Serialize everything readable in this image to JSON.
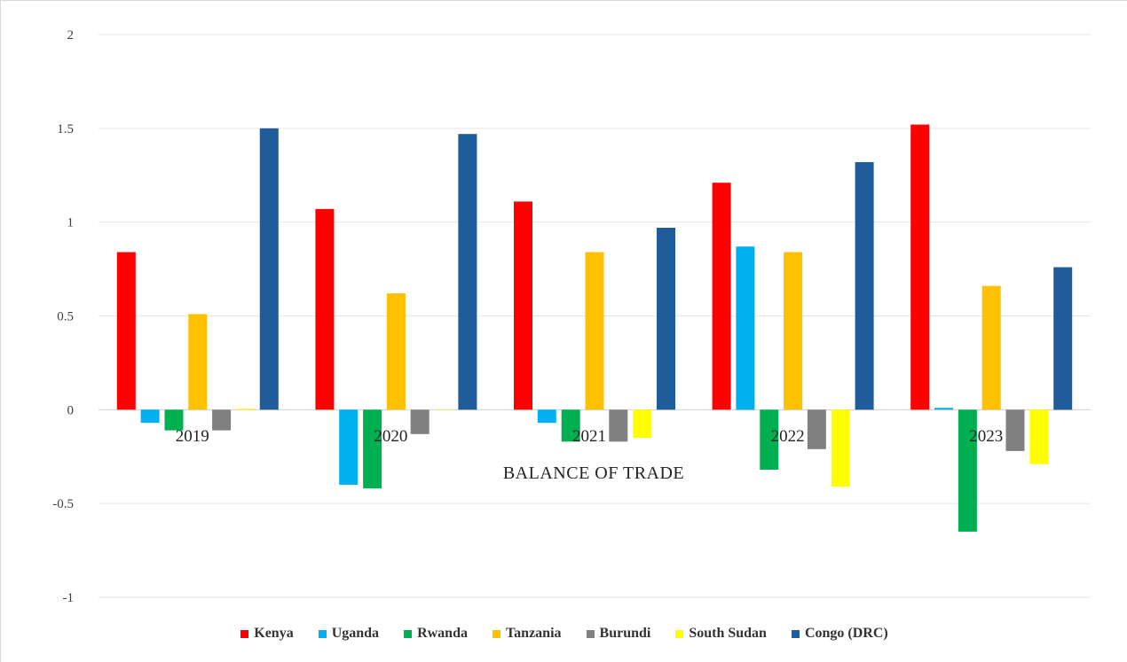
{
  "chart_data": {
    "type": "bar",
    "xlabel": "BALANCE OF TRADE",
    "ylabel": "",
    "ylim": [
      -1,
      2
    ],
    "yticks": [
      "2",
      "1.5",
      "1",
      "0.5",
      "0",
      "-0.5",
      "-1"
    ],
    "grid": true,
    "legend_position": "bottom",
    "categories": [
      "2019",
      "2020",
      "2021",
      "2022",
      "2023"
    ],
    "series": [
      {
        "name": "Kenya",
        "color": "#ff0000",
        "values": [
          0.84,
          1.07,
          1.11,
          1.21,
          1.52
        ]
      },
      {
        "name": "Uganda",
        "color": "#00b0f0",
        "values": [
          -0.07,
          -0.4,
          -0.07,
          0.87,
          0.01
        ]
      },
      {
        "name": "Rwanda",
        "color": "#00b050",
        "values": [
          -0.11,
          -0.42,
          -0.17,
          -0.32,
          -0.65
        ]
      },
      {
        "name": "Tanzania",
        "color": "#ffc000",
        "values": [
          0.51,
          0.62,
          0.84,
          0.84,
          0.66
        ]
      },
      {
        "name": "Burundi",
        "color": "#808080",
        "values": [
          -0.11,
          -0.13,
          -0.17,
          -0.21,
          -0.22
        ]
      },
      {
        "name": "South Sudan",
        "color": "#ffff00",
        "values": [
          0.005,
          0,
          -0.15,
          -0.41,
          -0.29
        ]
      },
      {
        "name": "Congo (DRC)",
        "color": "#1f5c99",
        "values": [
          1.5,
          1.47,
          0.97,
          1.32,
          0.76
        ]
      }
    ]
  }
}
